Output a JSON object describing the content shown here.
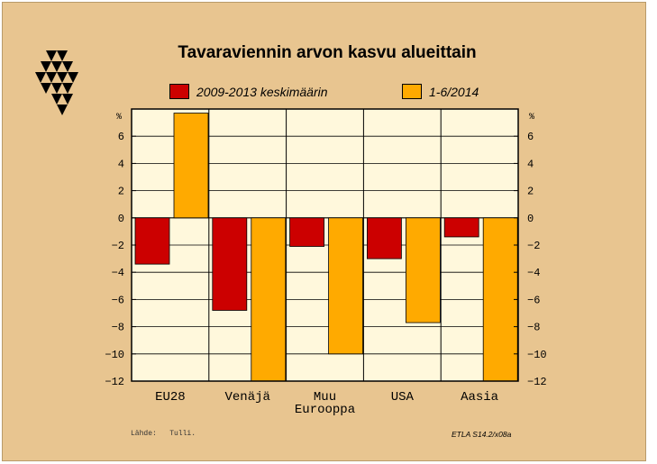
{
  "chart_data": {
    "type": "bar",
    "title": "Tavaraviennin arvon kasvu alueittain",
    "unit_label": "%",
    "categories": [
      [
        "EU28"
      ],
      [
        "Venäjä"
      ],
      [
        "Muu",
        "Eurooppa"
      ],
      [
        "USA"
      ],
      [
        "Aasia"
      ]
    ],
    "series": [
      {
        "name": "2009-2013 keskimäärin",
        "color": "#cc0000",
        "values": [
          -3.4,
          -6.8,
          -2.1,
          -3.0,
          -1.4
        ]
      },
      {
        "name": "1-6/2014",
        "color": "#ffaa00",
        "values": [
          7.7,
          -12.0,
          -10.0,
          -7.7,
          -12.0
        ]
      }
    ],
    "ylim": [
      -12,
      8
    ],
    "yticks": [
      -12,
      -10,
      -8,
      -6,
      -4,
      -2,
      0,
      2,
      4,
      6
    ],
    "ytick_labels": [
      "−12",
      "−10",
      "−8",
      "−6",
      "−4",
      "−2",
      "0",
      "2",
      "4",
      "6"
    ],
    "grid": true,
    "legend_position": "top"
  },
  "footer": {
    "source": "Lähde:   Tulli.",
    "code": "ETLA S14.2/x08a"
  },
  "colors": {
    "background": "#e8c590",
    "plot_background": "#fff8dc",
    "logo": "#000000"
  }
}
